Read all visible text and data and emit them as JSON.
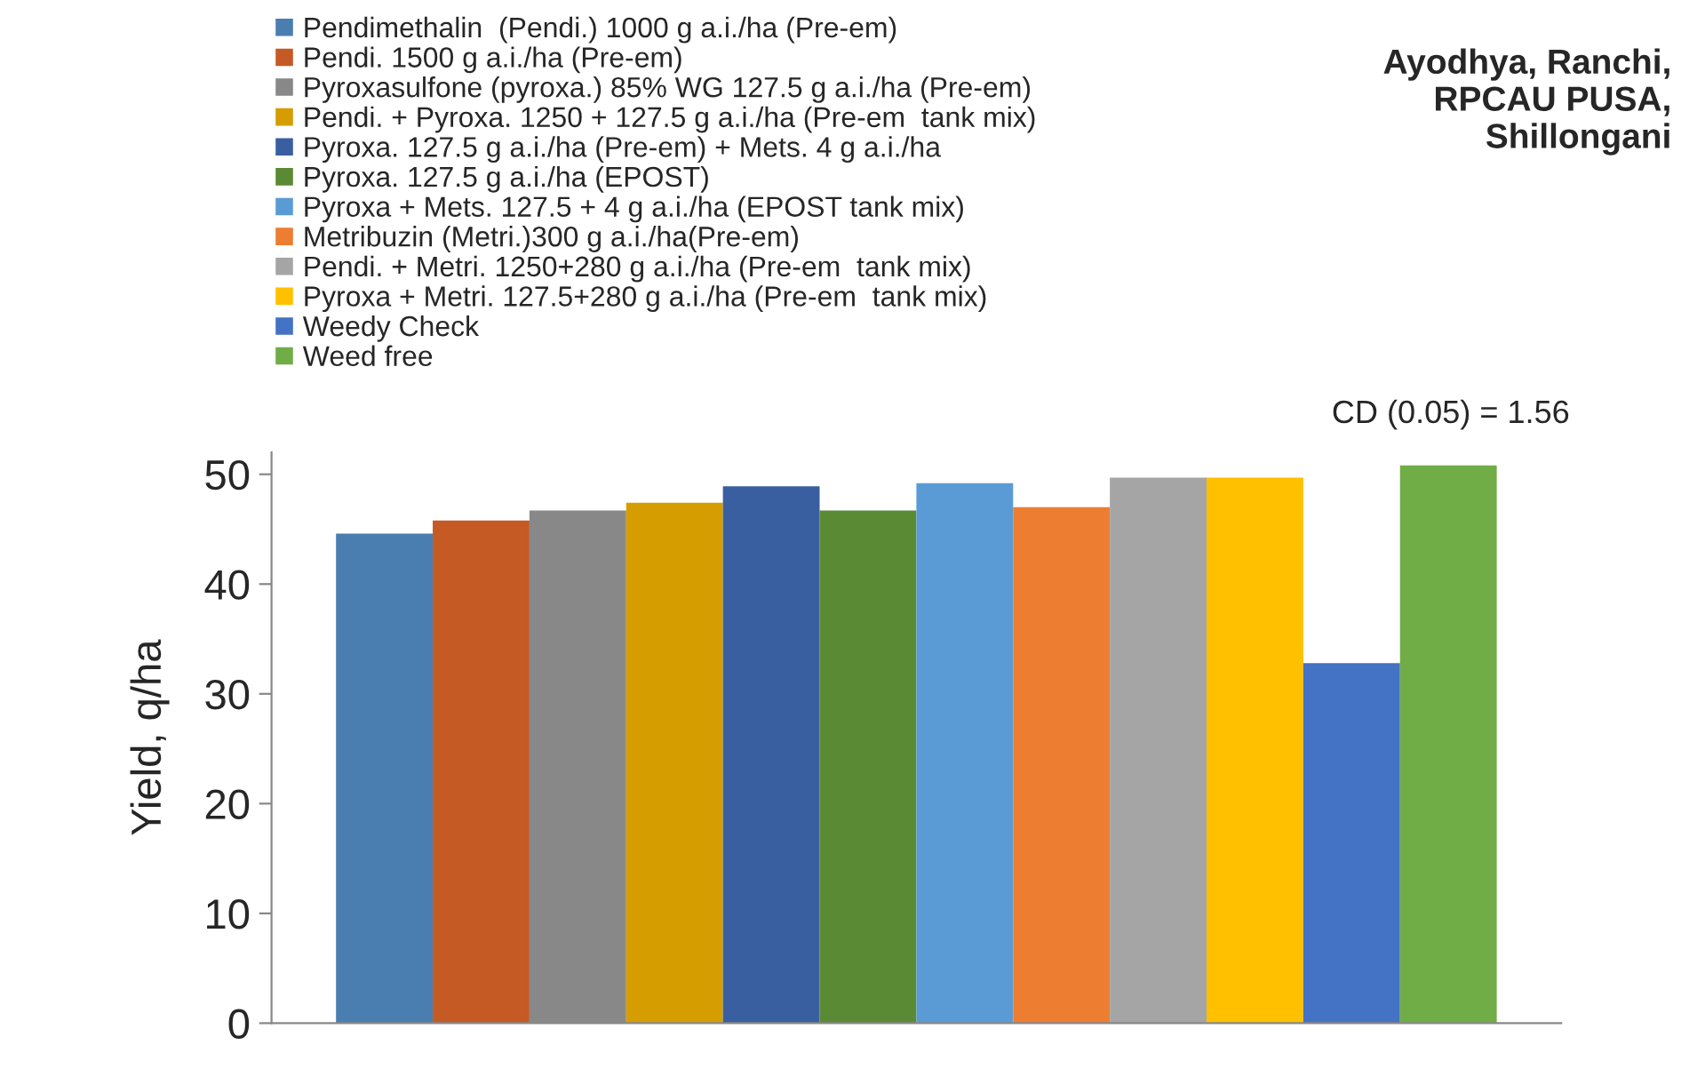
{
  "chart_data": {
    "type": "bar",
    "ylabel": "Yield, q/ha",
    "categories": [
      null
    ],
    "series": [
      {
        "name": "Pendimethalin  (Pendi.) 1000 g a.i./ha (Pre-em)",
        "color": "#4a7eb0",
        "values": [
          44.6
        ]
      },
      {
        "name": "Pendi. 1500 g a.i./ha (Pre-em)",
        "color": "#c55a24",
        "values": [
          45.8
        ]
      },
      {
        "name": "Pyroxasulfone (pyroxa.) 85% WG 127.5 g a.i./ha (Pre-em)",
        "color": "#888888",
        "values": [
          46.7
        ]
      },
      {
        "name": "Pendi. + Pyroxa. 1250 + 127.5 g a.i./ha (Pre-em  tank mix)",
        "color": "#d59d00",
        "values": [
          47.4
        ]
      },
      {
        "name": "Pyroxa. 127.5 g a.i./ha (Pre-em) + Mets. 4 g a.i./ha",
        "color": "#3a5fa0",
        "values": [
          48.9
        ]
      },
      {
        "name": "Pyroxa. 127.5 g a.i./ha (EPOST)",
        "color": "#5b8a35",
        "values": [
          46.7
        ]
      },
      {
        "name": "Pyroxa + Mets. 127.5 + 4 g a.i./ha (EPOST tank mix)",
        "color": "#5b9bd5",
        "values": [
          49.2
        ]
      },
      {
        "name": "Metribuzin (Metri.)300 g a.i./ha(Pre-em)",
        "color": "#ed7d31",
        "values": [
          47.0
        ]
      },
      {
        "name": "Pendi. + Metri. 1250+280 g a.i./ha (Pre-em  tank mix)",
        "color": "#a5a5a5",
        "values": [
          49.7
        ]
      },
      {
        "name": "Pyroxa + Metri. 127.5+280 g a.i./ha (Pre-em  tank mix)",
        "color": "#ffc000",
        "values": [
          49.7
        ]
      },
      {
        "name": "Weedy Check",
        "color": "#4472c4",
        "values": [
          32.8
        ]
      },
      {
        "name": "Weed free",
        "color": "#70ad47",
        "values": [
          50.8
        ]
      }
    ],
    "ylim": [
      0,
      52
    ],
    "yticks": [
      0,
      10,
      20,
      30,
      40,
      50
    ],
    "annotations": [
      "Ayodhya, Ranchi,\nRPCAU PUSA,\nShillongani",
      "CD (0.05) = 1.56"
    ],
    "grid": false,
    "legend": "top"
  }
}
